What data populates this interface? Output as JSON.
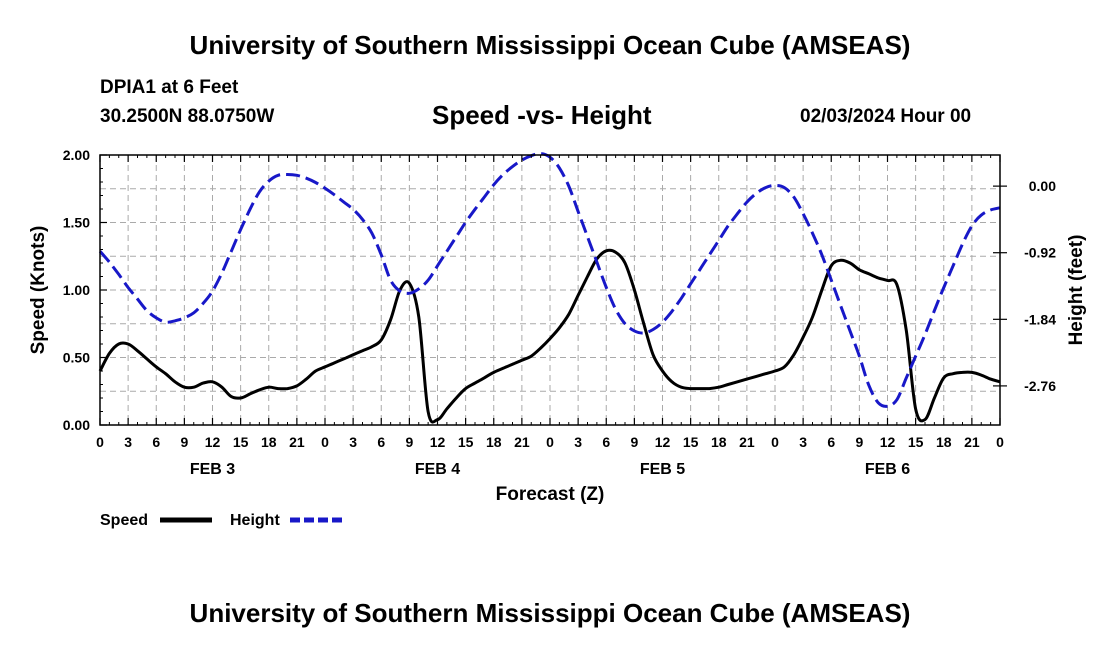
{
  "page": {
    "title_top": "University of Southern Mississippi Ocean Cube (AMSEAS)",
    "title_bottom": "University of Southern Mississippi Ocean Cube (AMSEAS)",
    "station": "DPIA1 at 6 Feet",
    "coords": "30.2500N  88.0750W",
    "subtitle": "Speed -vs- Height",
    "datetime": "02/03/2024 Hour 00"
  },
  "colors": {
    "speed": "#000000",
    "height": "#1818c8",
    "grid": "#aaaaaa"
  },
  "chart_data": {
    "type": "line",
    "title": "Speed -vs- Height",
    "xlabel": "Forecast (Z)",
    "ylabel": "Speed (Knots)",
    "y2label": "Height (feet)",
    "x_range": [
      0,
      96
    ],
    "x_tick_step_hours": 3,
    "x_tick_labels": [
      "0",
      "3",
      "6",
      "9",
      "12",
      "15",
      "18",
      "21",
      "0",
      "3",
      "6",
      "9",
      "12",
      "15",
      "18",
      "21",
      "0",
      "3",
      "6",
      "9",
      "12",
      "15",
      "18",
      "21",
      "0",
      "3",
      "6",
      "9",
      "12",
      "15",
      "18",
      "21",
      "0"
    ],
    "day_labels": [
      {
        "hour": 12,
        "label": "FEB 3"
      },
      {
        "hour": 36,
        "label": "FEB 4"
      },
      {
        "hour": 60,
        "label": "FEB 5"
      },
      {
        "hour": 84,
        "label": "FEB 6"
      }
    ],
    "ylim": [
      0,
      2.0
    ],
    "y_ticks": [
      "0.00",
      "0.50",
      "1.00",
      "1.50",
      "2.00"
    ],
    "y2lim": [
      -3.3,
      0.43
    ],
    "y2_ticks": [
      "0.00",
      "-0.92",
      "-1.84",
      "-2.76"
    ],
    "grid": true,
    "legend_position": "bottom-left",
    "series": [
      {
        "name": "Speed",
        "axis": "left",
        "style": "solid",
        "x": [
          0,
          1,
          2,
          3,
          4,
          5,
          6,
          7,
          8,
          9,
          10,
          11,
          12,
          13,
          14,
          15,
          16,
          17,
          18,
          19,
          20,
          21,
          22,
          23,
          24,
          25,
          26,
          27,
          28,
          29,
          30,
          31,
          32,
          33,
          34,
          35,
          36,
          37,
          38,
          39,
          40,
          41,
          42,
          43,
          44,
          45,
          46,
          47,
          48,
          49,
          50,
          51,
          52,
          53,
          54,
          55,
          56,
          57,
          58,
          59,
          60,
          61,
          62,
          63,
          64,
          65,
          66,
          67,
          68,
          69,
          70,
          71,
          72,
          73,
          74,
          75,
          76,
          77,
          78,
          79,
          80,
          81,
          82,
          83,
          84,
          85,
          86,
          87,
          88,
          89,
          90,
          91,
          92,
          93,
          94,
          95,
          96
        ],
        "values": [
          0.4,
          0.53,
          0.6,
          0.6,
          0.55,
          0.49,
          0.43,
          0.38,
          0.32,
          0.28,
          0.28,
          0.31,
          0.32,
          0.28,
          0.21,
          0.2,
          0.23,
          0.26,
          0.28,
          0.27,
          0.27,
          0.29,
          0.34,
          0.4,
          0.43,
          0.46,
          0.49,
          0.52,
          0.55,
          0.58,
          0.63,
          0.78,
          1.0,
          1.05,
          0.8,
          0.1,
          0.04,
          0.12,
          0.2,
          0.27,
          0.31,
          0.35,
          0.39,
          0.42,
          0.45,
          0.48,
          0.51,
          0.57,
          0.64,
          0.72,
          0.82,
          0.96,
          1.1,
          1.23,
          1.29,
          1.28,
          1.2,
          1.0,
          0.75,
          0.52,
          0.4,
          0.32,
          0.28,
          0.27,
          0.27,
          0.27,
          0.28,
          0.3,
          0.32,
          0.34,
          0.36,
          0.38,
          0.4,
          0.43,
          0.52,
          0.65,
          0.8,
          1.0,
          1.18,
          1.22,
          1.2,
          1.15,
          1.12,
          1.09,
          1.07,
          1.04,
          0.7,
          0.12,
          0.04,
          0.2,
          0.35,
          0.38,
          0.39,
          0.39,
          0.37,
          0.34,
          0.32
        ]
      },
      {
        "name": "Height",
        "axis": "right",
        "style": "dashed",
        "x": [
          0,
          1,
          2,
          3,
          4,
          5,
          6,
          7,
          8,
          9,
          10,
          11,
          12,
          13,
          14,
          15,
          16,
          17,
          18,
          19,
          20,
          21,
          22,
          23,
          24,
          25,
          26,
          27,
          28,
          29,
          30,
          31,
          32,
          33,
          34,
          35,
          36,
          37,
          38,
          39,
          40,
          41,
          42,
          43,
          44,
          45,
          46,
          47,
          48,
          49,
          50,
          51,
          52,
          53,
          54,
          55,
          56,
          57,
          58,
          59,
          60,
          61,
          62,
          63,
          64,
          65,
          66,
          67,
          68,
          69,
          70,
          71,
          72,
          73,
          74,
          75,
          76,
          77,
          78,
          79,
          80,
          81,
          82,
          83,
          84,
          85,
          86,
          87,
          88,
          89,
          90,
          91,
          92,
          93,
          94,
          95,
          96
        ],
        "values": [
          -0.9,
          -1.05,
          -1.22,
          -1.4,
          -1.56,
          -1.72,
          -1.82,
          -1.88,
          -1.86,
          -1.82,
          -1.75,
          -1.62,
          -1.45,
          -1.2,
          -0.9,
          -0.6,
          -0.32,
          -0.08,
          0.07,
          0.15,
          0.16,
          0.15,
          0.11,
          0.05,
          -0.03,
          -0.12,
          -0.22,
          -0.32,
          -0.46,
          -0.65,
          -0.95,
          -1.3,
          -1.45,
          -1.48,
          -1.42,
          -1.3,
          -1.1,
          -0.9,
          -0.7,
          -0.5,
          -0.32,
          -0.15,
          0.02,
          0.16,
          0.27,
          0.36,
          0.42,
          0.45,
          0.4,
          0.25,
          0.0,
          -0.35,
          -0.7,
          -1.05,
          -1.4,
          -1.7,
          -1.9,
          -2.0,
          -2.03,
          -1.98,
          -1.88,
          -1.73,
          -1.55,
          -1.35,
          -1.15,
          -0.95,
          -0.75,
          -0.55,
          -0.38,
          -0.22,
          -0.1,
          -0.02,
          0.01,
          -0.02,
          -0.15,
          -0.38,
          -0.65,
          -0.95,
          -1.3,
          -1.65,
          -2.0,
          -2.35,
          -2.75,
          -2.99,
          -3.04,
          -2.95,
          -2.65,
          -2.35,
          -2.05,
          -1.72,
          -1.4,
          -1.1,
          -0.8,
          -0.55,
          -0.4,
          -0.33,
          -0.3
        ]
      }
    ],
    "legend": [
      {
        "name": "Speed",
        "style": "solid"
      },
      {
        "name": "Height",
        "style": "dashed"
      }
    ]
  }
}
